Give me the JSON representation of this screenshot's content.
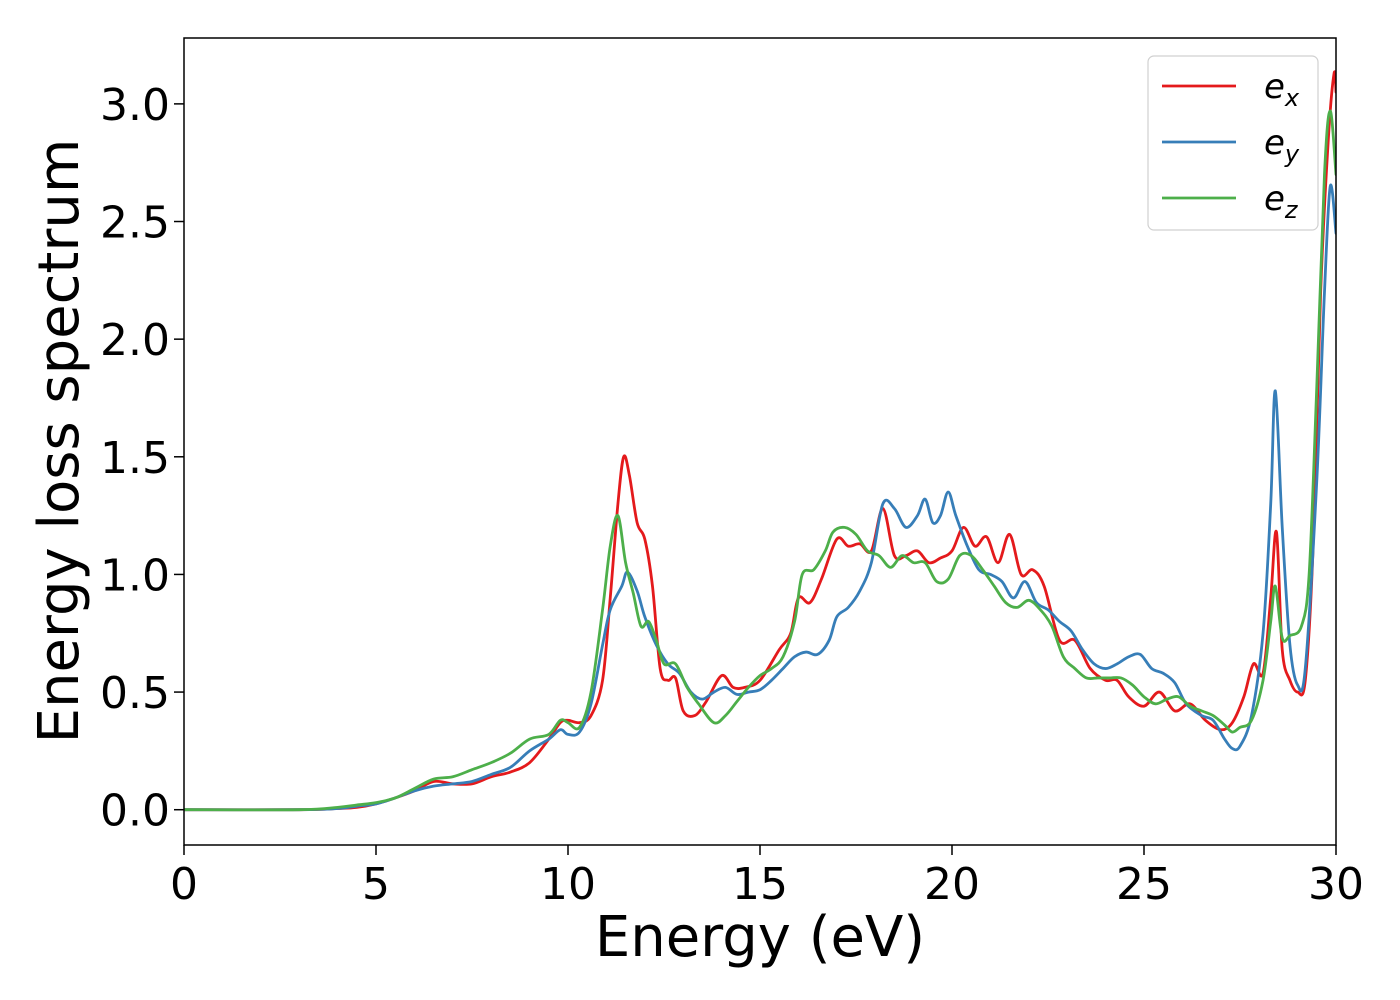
{
  "chart_data": {
    "type": "line",
    "title": "",
    "xlabel": "Energy (eV)",
    "ylabel": "Energy loss spectrum",
    "xlim": [
      0,
      30
    ],
    "ylim": [
      -0.15,
      3.28
    ],
    "xticks": [
      0,
      5,
      10,
      15,
      20,
      25,
      30
    ],
    "xtick_labels": [
      "0",
      "5",
      "10",
      "15",
      "20",
      "25",
      "30"
    ],
    "yticks": [
      0.0,
      0.5,
      1.0,
      1.5,
      2.0,
      2.5,
      3.0
    ],
    "ytick_labels": [
      "0.0",
      "0.5",
      "1.0",
      "1.5",
      "2.0",
      "2.5",
      "3.0"
    ],
    "grid": false,
    "legend_position": "top-right",
    "series": [
      {
        "name": "e_x",
        "label_base": "e",
        "label_sub": "x",
        "color": "#e41a1c",
        "points": [
          [
            0,
            0.0
          ],
          [
            3,
            0.0
          ],
          [
            4,
            0.005
          ],
          [
            4.5,
            0.01
          ],
          [
            5,
            0.025
          ],
          [
            5.5,
            0.05
          ],
          [
            6,
            0.08
          ],
          [
            6.5,
            0.12
          ],
          [
            7,
            0.11
          ],
          [
            7.5,
            0.11
          ],
          [
            8,
            0.14
          ],
          [
            8.5,
            0.16
          ],
          [
            9,
            0.2
          ],
          [
            9.5,
            0.3
          ],
          [
            9.8,
            0.37
          ],
          [
            10,
            0.38
          ],
          [
            10.3,
            0.37
          ],
          [
            10.6,
            0.4
          ],
          [
            10.9,
            0.55
          ],
          [
            11.1,
            0.9
          ],
          [
            11.3,
            1.3
          ],
          [
            11.45,
            1.5
          ],
          [
            11.6,
            1.42
          ],
          [
            11.8,
            1.22
          ],
          [
            12.0,
            1.15
          ],
          [
            12.2,
            0.95
          ],
          [
            12.4,
            0.6
          ],
          [
            12.6,
            0.55
          ],
          [
            12.8,
            0.56
          ],
          [
            13.0,
            0.42
          ],
          [
            13.3,
            0.4
          ],
          [
            13.6,
            0.46
          ],
          [
            14.0,
            0.57
          ],
          [
            14.3,
            0.52
          ],
          [
            14.6,
            0.52
          ],
          [
            15.0,
            0.55
          ],
          [
            15.5,
            0.68
          ],
          [
            15.8,
            0.75
          ],
          [
            16.0,
            0.9
          ],
          [
            16.3,
            0.88
          ],
          [
            16.6,
            0.98
          ],
          [
            17.0,
            1.15
          ],
          [
            17.3,
            1.12
          ],
          [
            17.6,
            1.13
          ],
          [
            17.9,
            1.1
          ],
          [
            18.2,
            1.28
          ],
          [
            18.5,
            1.08
          ],
          [
            18.8,
            1.08
          ],
          [
            19.1,
            1.1
          ],
          [
            19.4,
            1.05
          ],
          [
            19.7,
            1.07
          ],
          [
            20.0,
            1.1
          ],
          [
            20.3,
            1.2
          ],
          [
            20.6,
            1.12
          ],
          [
            20.9,
            1.16
          ],
          [
            21.2,
            1.05
          ],
          [
            21.5,
            1.17
          ],
          [
            21.8,
            1.0
          ],
          [
            22.1,
            1.02
          ],
          [
            22.4,
            0.95
          ],
          [
            22.8,
            0.72
          ],
          [
            23.2,
            0.72
          ],
          [
            23.6,
            0.6
          ],
          [
            24.0,
            0.55
          ],
          [
            24.3,
            0.55
          ],
          [
            24.6,
            0.48
          ],
          [
            25.0,
            0.44
          ],
          [
            25.4,
            0.5
          ],
          [
            25.8,
            0.42
          ],
          [
            26.2,
            0.45
          ],
          [
            26.6,
            0.38
          ],
          [
            27.0,
            0.34
          ],
          [
            27.3,
            0.37
          ],
          [
            27.6,
            0.48
          ],
          [
            27.85,
            0.62
          ],
          [
            28.1,
            0.58
          ],
          [
            28.3,
            0.9
          ],
          [
            28.45,
            1.18
          ],
          [
            28.6,
            0.68
          ],
          [
            28.8,
            0.55
          ],
          [
            29.0,
            0.5
          ],
          [
            29.2,
            0.55
          ],
          [
            29.4,
            1.1
          ],
          [
            29.6,
            2.2
          ],
          [
            29.8,
            2.85
          ],
          [
            29.95,
            3.13
          ],
          [
            30.0,
            3.05
          ]
        ]
      },
      {
        "name": "e_y",
        "label_base": "e",
        "label_sub": "y",
        "color": "#377eb8",
        "points": [
          [
            0,
            0.0
          ],
          [
            3,
            0.0
          ],
          [
            4,
            0.005
          ],
          [
            4.5,
            0.015
          ],
          [
            5,
            0.025
          ],
          [
            5.5,
            0.05
          ],
          [
            6,
            0.08
          ],
          [
            6.5,
            0.1
          ],
          [
            7,
            0.11
          ],
          [
            7.5,
            0.12
          ],
          [
            8,
            0.15
          ],
          [
            8.5,
            0.18
          ],
          [
            9,
            0.25
          ],
          [
            9.5,
            0.3
          ],
          [
            9.8,
            0.34
          ],
          [
            10.0,
            0.32
          ],
          [
            10.3,
            0.33
          ],
          [
            10.6,
            0.45
          ],
          [
            10.9,
            0.7
          ],
          [
            11.1,
            0.85
          ],
          [
            11.4,
            0.95
          ],
          [
            11.55,
            1.01
          ],
          [
            11.8,
            0.93
          ],
          [
            12.0,
            0.82
          ],
          [
            12.3,
            0.7
          ],
          [
            12.6,
            0.62
          ],
          [
            12.9,
            0.58
          ],
          [
            13.2,
            0.5
          ],
          [
            13.5,
            0.47
          ],
          [
            13.8,
            0.5
          ],
          [
            14.1,
            0.52
          ],
          [
            14.4,
            0.49
          ],
          [
            14.7,
            0.5
          ],
          [
            15.0,
            0.51
          ],
          [
            15.3,
            0.55
          ],
          [
            15.6,
            0.6
          ],
          [
            15.9,
            0.65
          ],
          [
            16.2,
            0.67
          ],
          [
            16.5,
            0.66
          ],
          [
            16.8,
            0.72
          ],
          [
            17.0,
            0.82
          ],
          [
            17.3,
            0.86
          ],
          [
            17.6,
            0.93
          ],
          [
            17.9,
            1.05
          ],
          [
            18.2,
            1.3
          ],
          [
            18.5,
            1.28
          ],
          [
            18.8,
            1.2
          ],
          [
            19.1,
            1.25
          ],
          [
            19.3,
            1.32
          ],
          [
            19.5,
            1.22
          ],
          [
            19.7,
            1.25
          ],
          [
            19.9,
            1.35
          ],
          [
            20.1,
            1.25
          ],
          [
            20.4,
            1.12
          ],
          [
            20.7,
            1.02
          ],
          [
            21.0,
            1.0
          ],
          [
            21.3,
            0.97
          ],
          [
            21.6,
            0.9
          ],
          [
            21.9,
            0.97
          ],
          [
            22.2,
            0.88
          ],
          [
            22.5,
            0.85
          ],
          [
            22.8,
            0.8
          ],
          [
            23.1,
            0.76
          ],
          [
            23.4,
            0.68
          ],
          [
            23.7,
            0.62
          ],
          [
            24.0,
            0.6
          ],
          [
            24.3,
            0.62
          ],
          [
            24.6,
            0.65
          ],
          [
            24.9,
            0.66
          ],
          [
            25.2,
            0.6
          ],
          [
            25.5,
            0.58
          ],
          [
            25.8,
            0.54
          ],
          [
            26.1,
            0.45
          ],
          [
            26.5,
            0.4
          ],
          [
            26.8,
            0.38
          ],
          [
            27.1,
            0.3
          ],
          [
            27.3,
            0.26
          ],
          [
            27.5,
            0.27
          ],
          [
            27.8,
            0.4
          ],
          [
            28.1,
            0.75
          ],
          [
            28.3,
            1.3
          ],
          [
            28.42,
            1.78
          ],
          [
            28.6,
            1.2
          ],
          [
            28.8,
            0.7
          ],
          [
            29.0,
            0.53
          ],
          [
            29.2,
            0.6
          ],
          [
            29.5,
            1.4
          ],
          [
            29.7,
            2.2
          ],
          [
            29.85,
            2.65
          ],
          [
            30.0,
            2.45
          ]
        ]
      },
      {
        "name": "e_z",
        "label_base": "e",
        "label_sub": "z",
        "color": "#4daf4a",
        "points": [
          [
            0,
            0.0
          ],
          [
            3,
            0.0
          ],
          [
            4,
            0.01
          ],
          [
            4.5,
            0.02
          ],
          [
            5,
            0.03
          ],
          [
            5.5,
            0.05
          ],
          [
            6,
            0.09
          ],
          [
            6.5,
            0.13
          ],
          [
            7,
            0.14
          ],
          [
            7.5,
            0.17
          ],
          [
            8,
            0.2
          ],
          [
            8.5,
            0.24
          ],
          [
            9,
            0.3
          ],
          [
            9.5,
            0.32
          ],
          [
            9.8,
            0.38
          ],
          [
            10.0,
            0.37
          ],
          [
            10.3,
            0.35
          ],
          [
            10.6,
            0.5
          ],
          [
            10.9,
            0.85
          ],
          [
            11.1,
            1.12
          ],
          [
            11.3,
            1.25
          ],
          [
            11.5,
            1.05
          ],
          [
            11.7,
            0.92
          ],
          [
            11.9,
            0.78
          ],
          [
            12.1,
            0.8
          ],
          [
            12.3,
            0.72
          ],
          [
            12.5,
            0.62
          ],
          [
            12.8,
            0.62
          ],
          [
            13.1,
            0.52
          ],
          [
            13.4,
            0.45
          ],
          [
            13.8,
            0.37
          ],
          [
            14.1,
            0.4
          ],
          [
            14.4,
            0.46
          ],
          [
            14.7,
            0.52
          ],
          [
            15.0,
            0.57
          ],
          [
            15.3,
            0.6
          ],
          [
            15.6,
            0.65
          ],
          [
            15.9,
            0.8
          ],
          [
            16.1,
            1.0
          ],
          [
            16.4,
            1.02
          ],
          [
            16.7,
            1.1
          ],
          [
            16.9,
            1.18
          ],
          [
            17.2,
            1.2
          ],
          [
            17.5,
            1.17
          ],
          [
            17.8,
            1.1
          ],
          [
            18.1,
            1.08
          ],
          [
            18.4,
            1.03
          ],
          [
            18.7,
            1.08
          ],
          [
            19.0,
            1.05
          ],
          [
            19.3,
            1.05
          ],
          [
            19.6,
            0.97
          ],
          [
            19.9,
            0.98
          ],
          [
            20.2,
            1.08
          ],
          [
            20.5,
            1.08
          ],
          [
            20.8,
            1.02
          ],
          [
            21.1,
            0.95
          ],
          [
            21.4,
            0.88
          ],
          [
            21.7,
            0.86
          ],
          [
            22.0,
            0.89
          ],
          [
            22.3,
            0.85
          ],
          [
            22.6,
            0.78
          ],
          [
            22.9,
            0.65
          ],
          [
            23.2,
            0.6
          ],
          [
            23.5,
            0.56
          ],
          [
            23.8,
            0.56
          ],
          [
            24.1,
            0.56
          ],
          [
            24.4,
            0.56
          ],
          [
            24.7,
            0.53
          ],
          [
            25.0,
            0.48
          ],
          [
            25.3,
            0.45
          ],
          [
            25.6,
            0.47
          ],
          [
            25.9,
            0.48
          ],
          [
            26.2,
            0.44
          ],
          [
            26.5,
            0.42
          ],
          [
            26.8,
            0.4
          ],
          [
            27.1,
            0.36
          ],
          [
            27.3,
            0.33
          ],
          [
            27.5,
            0.35
          ],
          [
            27.8,
            0.38
          ],
          [
            28.1,
            0.55
          ],
          [
            28.3,
            0.8
          ],
          [
            28.42,
            0.95
          ],
          [
            28.6,
            0.73
          ],
          [
            28.8,
            0.74
          ],
          [
            29.1,
            0.78
          ],
          [
            29.3,
            1.0
          ],
          [
            29.5,
            1.8
          ],
          [
            29.7,
            2.7
          ],
          [
            29.85,
            2.97
          ],
          [
            30.0,
            2.7
          ]
        ]
      }
    ]
  }
}
